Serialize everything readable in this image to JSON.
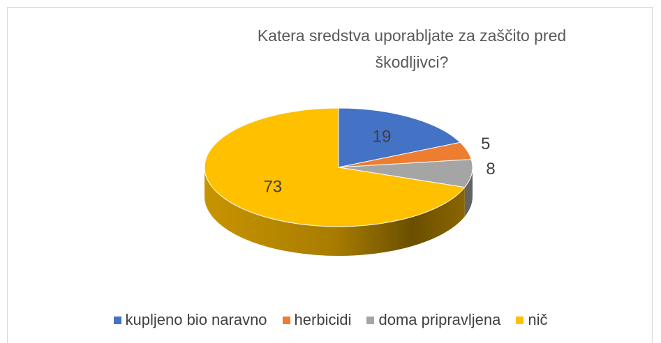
{
  "chart_data": {
    "type": "pie",
    "title": "Katera sredstva uporabljate za zaščito pred škodljivci?",
    "categories": [
      "kupljeno bio naravno",
      "herbicidi",
      "doma pripravljena",
      "nič"
    ],
    "values": [
      19,
      5,
      8,
      73
    ],
    "colors": [
      "#4472c4",
      "#ed7d31",
      "#a5a5a5",
      "#ffc000"
    ],
    "legend": "bottom"
  }
}
